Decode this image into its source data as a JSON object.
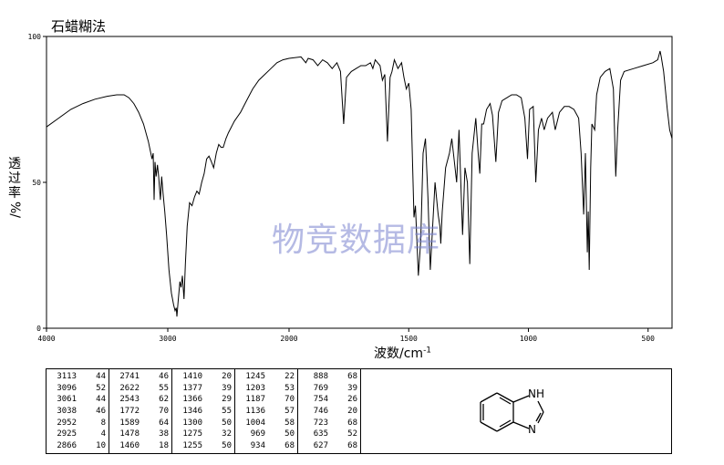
{
  "title": "石蜡糊法",
  "chart_data": {
    "type": "line",
    "xlabel": "波数/cm",
    "xlabel_sup": "-1",
    "ylabel_text": "透过率",
    "ylabel_unit": "%/",
    "xlim": [
      4000,
      400
    ],
    "ylim": [
      0,
      100
    ],
    "x_ticks": [
      "4000",
      "3000",
      "2000",
      "1500",
      "1000",
      "500"
    ],
    "y_ticks": [
      "0",
      "50",
      "100"
    ],
    "spectrum": [
      [
        4000,
        69
      ],
      [
        3900,
        72
      ],
      [
        3800,
        75
      ],
      [
        3700,
        77
      ],
      [
        3600,
        78.5
      ],
      [
        3500,
        79.5
      ],
      [
        3420,
        80
      ],
      [
        3360,
        80
      ],
      [
        3320,
        79
      ],
      [
        3280,
        77
      ],
      [
        3240,
        74
      ],
      [
        3200,
        70
      ],
      [
        3160,
        64
      ],
      [
        3130,
        58
      ],
      [
        3120,
        60
      ],
      [
        3113,
        44
      ],
      [
        3105,
        57
      ],
      [
        3096,
        52
      ],
      [
        3085,
        56
      ],
      [
        3075,
        52
      ],
      [
        3061,
        44
      ],
      [
        3050,
        52
      ],
      [
        3038,
        46
      ],
      [
        3025,
        40
      ],
      [
        3010,
        32
      ],
      [
        2990,
        20
      ],
      [
        2970,
        12
      ],
      [
        2952,
        8
      ],
      [
        2940,
        6
      ],
      [
        2930,
        7
      ],
      [
        2925,
        4
      ],
      [
        2915,
        9
      ],
      [
        2900,
        16
      ],
      [
        2890,
        14
      ],
      [
        2880,
        18
      ],
      [
        2866,
        10
      ],
      [
        2855,
        22
      ],
      [
        2840,
        35
      ],
      [
        2820,
        43
      ],
      [
        2800,
        42
      ],
      [
        2780,
        45
      ],
      [
        2760,
        47
      ],
      [
        2741,
        46
      ],
      [
        2720,
        50
      ],
      [
        2700,
        53
      ],
      [
        2680,
        58
      ],
      [
        2660,
        59
      ],
      [
        2640,
        57
      ],
      [
        2622,
        55
      ],
      [
        2600,
        60
      ],
      [
        2580,
        63
      ],
      [
        2560,
        62
      ],
      [
        2543,
        62
      ],
      [
        2520,
        65
      ],
      [
        2500,
        67
      ],
      [
        2450,
        71
      ],
      [
        2400,
        74
      ],
      [
        2350,
        78
      ],
      [
        2300,
        82
      ],
      [
        2250,
        85
      ],
      [
        2200,
        87
      ],
      [
        2150,
        89
      ],
      [
        2100,
        91
      ],
      [
        2050,
        92
      ],
      [
        2000,
        92.5
      ],
      [
        1950,
        93
      ],
      [
        1930,
        91
      ],
      [
        1920,
        92.5
      ],
      [
        1900,
        92
      ],
      [
        1880,
        90
      ],
      [
        1860,
        92
      ],
      [
        1840,
        91
      ],
      [
        1820,
        89
      ],
      [
        1800,
        91
      ],
      [
        1785,
        88
      ],
      [
        1772,
        70
      ],
      [
        1760,
        86
      ],
      [
        1740,
        88
      ],
      [
        1720,
        89
      ],
      [
        1700,
        90
      ],
      [
        1680,
        90
      ],
      [
        1660,
        91
      ],
      [
        1650,
        89
      ],
      [
        1640,
        92
      ],
      [
        1630,
        91
      ],
      [
        1620,
        90
      ],
      [
        1610,
        85
      ],
      [
        1600,
        87
      ],
      [
        1589,
        64
      ],
      [
        1578,
        86
      ],
      [
        1570,
        88
      ],
      [
        1560,
        92
      ],
      [
        1545,
        89
      ],
      [
        1530,
        91
      ],
      [
        1520,
        86
      ],
      [
        1510,
        82
      ],
      [
        1500,
        84
      ],
      [
        1490,
        75
      ],
      [
        1478,
        38
      ],
      [
        1472,
        42
      ],
      [
        1460,
        18
      ],
      [
        1450,
        30
      ],
      [
        1440,
        60
      ],
      [
        1430,
        65
      ],
      [
        1420,
        45
      ],
      [
        1410,
        20
      ],
      [
        1400,
        35
      ],
      [
        1390,
        50
      ],
      [
        1377,
        39
      ],
      [
        1370,
        35
      ],
      [
        1366,
        29
      ],
      [
        1360,
        40
      ],
      [
        1346,
        55
      ],
      [
        1330,
        60
      ],
      [
        1320,
        65
      ],
      [
        1300,
        50
      ],
      [
        1290,
        68
      ],
      [
        1275,
        32
      ],
      [
        1265,
        55
      ],
      [
        1255,
        50
      ],
      [
        1245,
        22
      ],
      [
        1235,
        60
      ],
      [
        1220,
        72
      ],
      [
        1210,
        60
      ],
      [
        1203,
        53
      ],
      [
        1195,
        70
      ],
      [
        1187,
        70
      ],
      [
        1175,
        75
      ],
      [
        1160,
        77
      ],
      [
        1150,
        73
      ],
      [
        1136,
        57
      ],
      [
        1125,
        74
      ],
      [
        1110,
        78
      ],
      [
        1090,
        79
      ],
      [
        1070,
        80
      ],
      [
        1050,
        80
      ],
      [
        1030,
        79
      ],
      [
        1015,
        72
      ],
      [
        1004,
        58
      ],
      [
        995,
        75
      ],
      [
        980,
        76
      ],
      [
        969,
        50
      ],
      [
        958,
        68
      ],
      [
        945,
        72
      ],
      [
        934,
        68
      ],
      [
        920,
        72
      ],
      [
        900,
        74
      ],
      [
        888,
        68
      ],
      [
        870,
        74
      ],
      [
        850,
        76
      ],
      [
        830,
        76
      ],
      [
        810,
        75
      ],
      [
        790,
        72
      ],
      [
        780,
        60
      ],
      [
        769,
        39
      ],
      [
        762,
        60
      ],
      [
        754,
        26
      ],
      [
        750,
        40
      ],
      [
        746,
        20
      ],
      [
        740,
        55
      ],
      [
        735,
        70
      ],
      [
        723,
        68
      ],
      [
        715,
        80
      ],
      [
        700,
        86
      ],
      [
        680,
        88
      ],
      [
        660,
        89
      ],
      [
        645,
        82
      ],
      [
        635,
        52
      ],
      [
        627,
        68
      ],
      [
        615,
        85
      ],
      [
        600,
        88
      ],
      [
        560,
        89
      ],
      [
        520,
        90
      ],
      [
        480,
        91
      ],
      [
        460,
        92
      ],
      [
        450,
        95
      ],
      [
        445,
        93
      ],
      [
        435,
        88
      ],
      [
        420,
        75
      ],
      [
        410,
        68
      ],
      [
        400,
        65
      ]
    ],
    "peaks": [
      [
        [
          "3113",
          "44"
        ],
        [
          "3096",
          "52"
        ],
        [
          "3061",
          "44"
        ],
        [
          "3038",
          "46"
        ],
        [
          "2952",
          "8"
        ],
        [
          "2925",
          "4"
        ],
        [
          "2866",
          "10"
        ]
      ],
      [
        [
          "2741",
          "46"
        ],
        [
          "2622",
          "55"
        ],
        [
          "2543",
          "62"
        ],
        [
          "1772",
          "70"
        ],
        [
          "1589",
          "64"
        ],
        [
          "1478",
          "38"
        ],
        [
          "1460",
          "18"
        ]
      ],
      [
        [
          "1410",
          "20"
        ],
        [
          "1377",
          "39"
        ],
        [
          "1366",
          "29"
        ],
        [
          "1346",
          "55"
        ],
        [
          "1300",
          "50"
        ],
        [
          "1275",
          "32"
        ],
        [
          "1255",
          "50"
        ]
      ],
      [
        [
          "1245",
          "22"
        ],
        [
          "1203",
          "53"
        ],
        [
          "1187",
          "70"
        ],
        [
          "1136",
          "57"
        ],
        [
          "1004",
          "58"
        ],
        [
          "969",
          "50"
        ],
        [
          "934",
          "68"
        ]
      ],
      [
        [
          "888",
          "68"
        ],
        [
          "769",
          "39"
        ],
        [
          "754",
          "26"
        ],
        [
          "746",
          "20"
        ],
        [
          "723",
          "68"
        ],
        [
          "635",
          "52"
        ],
        [
          "627",
          "68"
        ]
      ]
    ]
  },
  "watermark": "物竞数据库",
  "structure": {
    "nh_label": "NH",
    "n_label": "N"
  }
}
